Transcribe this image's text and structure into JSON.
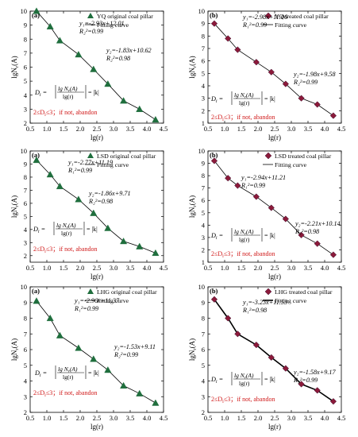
{
  "figure": {
    "formula": {
      "prefix": "D",
      "sub": "i",
      "lhs_eq": " = ",
      "num": "lg N",
      "num_sub": "r",
      "num_tail": "(A)",
      "den": "lg(r)",
      "rhs": "= |k|"
    },
    "range_text": "2≤D",
    "range_sub": "i",
    "range_tail": "≤3；if not, abandon",
    "ylabel_main": "lgN",
    "ylabel_sub": "r",
    "ylabel_tail": "(A)",
    "xlabel": "lg(r)",
    "fit_label": "Fitting curve"
  },
  "chart_data": [
    {
      "type": "scatter",
      "panel": "(a)",
      "legend": "YQ original coal pillar",
      "marker": "triangle",
      "marker_color": "#1f6e3d",
      "line_style": "thin",
      "xlim": [
        0.5,
        4.5
      ],
      "ylim": [
        2,
        10
      ],
      "xticks": [
        0.5,
        1.0,
        1.5,
        2.0,
        2.5,
        3.0,
        3.5,
        4.0,
        4.5
      ],
      "yticks": [
        2,
        3,
        4,
        5,
        6,
        7,
        8,
        9,
        10
      ],
      "x": [
        0.69,
        1.1,
        1.39,
        1.95,
        2.4,
        2.83,
        3.3,
        3.78,
        4.26
      ],
      "y": [
        10.0,
        8.9,
        7.9,
        6.9,
        5.85,
        4.8,
        3.6,
        3.0,
        2.25
      ],
      "fit_breaks": [
        0.69,
        1.95,
        4.26
      ],
      "eq1": "y₁=-2.93x+12.01",
      "r2_1": "R₂²=0.99",
      "eq2": "y₂=-1.83x+10.62",
      "r2_2": "R₂²=0.98"
    },
    {
      "type": "scatter",
      "panel": "(b)",
      "legend": "YQ treated coal pillar",
      "marker": "diamond",
      "marker_color": "#8b1a3a",
      "line_style": "thin",
      "xlim": [
        0.5,
        4.5
      ],
      "ylim": [
        1,
        10
      ],
      "xticks": [
        0.5,
        1.0,
        1.5,
        2.0,
        2.5,
        3.0,
        3.5,
        4.0,
        4.5
      ],
      "yticks": [
        1,
        2,
        3,
        4,
        5,
        6,
        7,
        8,
        9,
        10
      ],
      "x": [
        0.69,
        1.1,
        1.39,
        1.95,
        2.4,
        2.83,
        3.3,
        3.78,
        4.26
      ],
      "y": [
        9.0,
        7.8,
        6.9,
        5.9,
        5.1,
        4.15,
        3.0,
        2.5,
        1.6
      ],
      "fit_breaks": [
        0.69,
        1.95,
        4.26
      ],
      "eq1": "y₁=-2.98x+11.06",
      "r2_1": "R₁²=0.99",
      "eq2": "y₂=-1.98x+9.58",
      "r2_2": "R₂²=0.99"
    },
    {
      "type": "scatter",
      "panel": "(a)",
      "legend": "LSD original coal pillar",
      "marker": "triangle",
      "marker_color": "#1f6e3d",
      "line_style": "thin",
      "xlim": [
        0.5,
        4.5
      ],
      "ylim": [
        1.5,
        10
      ],
      "xticks": [
        0.5,
        1.0,
        1.5,
        2.0,
        2.5,
        3.0,
        3.5,
        4.0,
        4.5
      ],
      "yticks": [
        2,
        3,
        4,
        5,
        6,
        7,
        8,
        9,
        10
      ],
      "x": [
        0.69,
        1.1,
        1.39,
        1.95,
        2.4,
        2.83,
        3.3,
        3.78,
        4.26
      ],
      "y": [
        9.3,
        8.2,
        7.3,
        6.3,
        5.25,
        4.1,
        3.1,
        2.7,
        2.2
      ],
      "fit_breaks": [
        0.69,
        1.95,
        4.26
      ],
      "eq1": "y₁=-2.77x+11.19",
      "r2_1": "R₁²=0.99",
      "eq2": "y₂=-1.86x+9.71",
      "r2_2": "R₂²=0.98"
    },
    {
      "type": "scatter",
      "panel": "(b)",
      "legend": "LSD treated coal pillar",
      "marker": "diamond",
      "marker_color": "#8b1a3a",
      "line_style": "thin",
      "xlim": [
        0.5,
        4.5
      ],
      "ylim": [
        1,
        10
      ],
      "xticks": [
        0.5,
        1.0,
        1.5,
        2.0,
        2.5,
        3.0,
        3.5,
        4.0,
        4.5
      ],
      "yticks": [
        1,
        2,
        3,
        4,
        5,
        6,
        7,
        8,
        9,
        10
      ],
      "x": [
        0.69,
        1.1,
        1.39,
        1.95,
        2.4,
        2.83,
        3.3,
        3.78,
        4.26
      ],
      "y": [
        9.2,
        7.8,
        7.2,
        6.3,
        5.4,
        4.5,
        3.2,
        2.5,
        1.6
      ],
      "fit_breaks": [
        0.69,
        1.95,
        4.26
      ],
      "eq1": "y₁=-2.94x+11.21",
      "r2_1": "R₁²=0.99",
      "eq2": "y₂=-2.21x+10.14",
      "r2_2": "R₂²=0.98"
    },
    {
      "type": "scatter",
      "panel": "(a)",
      "legend": "LHG original coal pillar",
      "marker": "triangle",
      "marker_color": "#1f6e3d",
      "line_style": "thin",
      "xlim": [
        0.5,
        4.5
      ],
      "ylim": [
        2,
        10
      ],
      "xticks": [
        0.5,
        1.0,
        1.5,
        2.0,
        2.5,
        3.0,
        3.5,
        4.0,
        4.5
      ],
      "yticks": [
        2,
        3,
        4,
        5,
        6,
        7,
        8,
        9,
        10
      ],
      "x": [
        0.69,
        1.1,
        1.39,
        1.95,
        2.4,
        2.83,
        3.3,
        3.78,
        4.26
      ],
      "y": [
        9.1,
        8.0,
        6.9,
        6.1,
        5.4,
        4.7,
        3.7,
        3.2,
        2.6
      ],
      "fit_breaks": [
        0.69,
        1.39,
        4.26
      ],
      "eq1": "y₁=-2.96x+11.37",
      "r2_1": "R₁²=0.99",
      "eq2": "y₂=-1.53x+9.11",
      "r2_2": "R₂²=0.99"
    },
    {
      "type": "scatter",
      "panel": "(b)",
      "legend": "LHG treated coal pillar",
      "marker": "diamond",
      "marker_color": "#8b1a3a",
      "line_style": "bold",
      "xlim": [
        0.5,
        4.5
      ],
      "ylim": [
        2,
        10
      ],
      "xticks": [
        0.5,
        1.0,
        1.5,
        2.0,
        2.5,
        3.0,
        3.5,
        4.0,
        4.5
      ],
      "yticks": [
        2,
        3,
        4,
        5,
        6,
        7,
        8,
        9,
        10
      ],
      "x": [
        0.69,
        1.1,
        1.39,
        1.95,
        2.4,
        2.83,
        3.3,
        3.78,
        4.26
      ],
      "y": [
        9.2,
        8.0,
        7.0,
        6.3,
        5.5,
        4.8,
        3.8,
        3.4,
        2.7
      ],
      "fit_breaks": [
        0.69,
        1.39,
        4.26
      ],
      "eq1": "y₁=-3.23x+11.53",
      "r2_1": "R₁²=0.98",
      "eq2": "y₂=-1.58x+9.17",
      "r2_2": "R₂²=0.99"
    }
  ]
}
